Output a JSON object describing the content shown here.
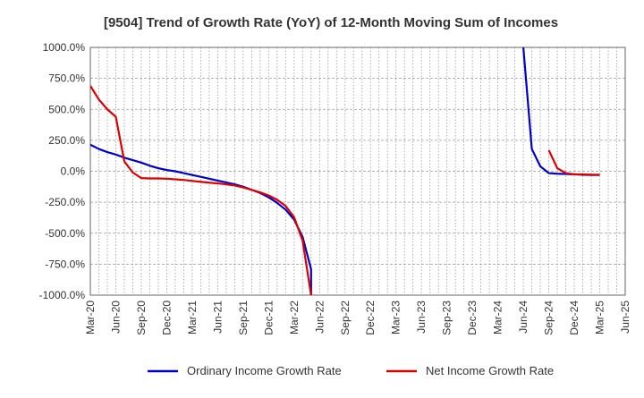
{
  "chart_data": {
    "type": "line",
    "title": "[9504]  Trend of Growth Rate (YoY) of 12-Month Moving Sum of Incomes",
    "xlabel": "",
    "ylabel": "",
    "ylim": [
      -1000,
      1000
    ],
    "y_ticks": [
      1000,
      750,
      500,
      250,
      0,
      -250,
      -500,
      -750,
      -1000
    ],
    "y_tick_labels": [
      "1000.0%",
      "750.0%",
      "500.0%",
      "250.0%",
      "0.0%",
      "-250.0%",
      "-500.0%",
      "-750.0%",
      "-1000.0%"
    ],
    "x_tick_labels": [
      "Mar-20",
      "Jun-20",
      "Sep-20",
      "Dec-20",
      "Mar-21",
      "Jun-21",
      "Sep-21",
      "Dec-21",
      "Mar-22",
      "Jun-22",
      "Sep-22",
      "Dec-22",
      "Mar-23",
      "Jun-23",
      "Sep-23",
      "Dec-23",
      "Mar-24",
      "Jun-24",
      "Sep-24",
      "Dec-24",
      "Mar-25",
      "Jun-25"
    ],
    "months": [
      "Mar-20",
      "Apr-20",
      "May-20",
      "Jun-20",
      "Jul-20",
      "Aug-20",
      "Sep-20",
      "Oct-20",
      "Nov-20",
      "Dec-20",
      "Jan-21",
      "Feb-21",
      "Mar-21",
      "Apr-21",
      "May-21",
      "Jun-21",
      "Jul-21",
      "Aug-21",
      "Sep-21",
      "Oct-21",
      "Nov-21",
      "Dec-21",
      "Jan-22",
      "Feb-22",
      "Mar-22",
      "Apr-22",
      "May-22",
      "Jun-22",
      "Jul-22",
      "Aug-22",
      "Sep-22",
      "Oct-22",
      "Nov-22",
      "Dec-22",
      "Jan-23",
      "Feb-23",
      "Mar-23",
      "Apr-23",
      "May-23",
      "Jun-23",
      "Jul-23",
      "Aug-23",
      "Sep-23",
      "Oct-23",
      "Nov-23",
      "Dec-23",
      "Jan-24",
      "Feb-24",
      "Mar-24",
      "Apr-24",
      "May-24",
      "Jun-24",
      "Jul-24",
      "Aug-24",
      "Sep-24",
      "Oct-24",
      "Nov-24",
      "Dec-24",
      "Jan-25",
      "Feb-25",
      "Mar-25",
      "Apr-25",
      "May-25",
      "Jun-25"
    ],
    "grid": true,
    "legend_position": "bottom",
    "series": [
      {
        "name": "Ordinary Income Growth Rate",
        "color": "#0000cc",
        "points": [
          [
            "Mar-20",
            215
          ],
          [
            "Apr-20",
            180
          ],
          [
            "May-20",
            155
          ],
          [
            "Jun-20",
            135
          ],
          [
            "Jul-20",
            110
          ],
          [
            "Aug-20",
            90
          ],
          [
            "Sep-20",
            70
          ],
          [
            "Oct-20",
            45
          ],
          [
            "Nov-20",
            25
          ],
          [
            "Dec-20",
            10
          ],
          [
            "Jan-21",
            0
          ],
          [
            "Feb-21",
            -15
          ],
          [
            "Mar-21",
            -30
          ],
          [
            "Apr-21",
            -45
          ],
          [
            "May-21",
            -60
          ],
          [
            "Jun-21",
            -75
          ],
          [
            "Jul-21",
            -90
          ],
          [
            "Aug-21",
            -105
          ],
          [
            "Sep-21",
            -125
          ],
          [
            "Oct-21",
            -150
          ],
          [
            "Nov-21",
            -175
          ],
          [
            "Dec-21",
            -210
          ],
          [
            "Jan-22",
            -255
          ],
          [
            "Feb-22",
            -310
          ],
          [
            "Mar-22",
            -390
          ],
          [
            "Apr-22",
            -530
          ],
          [
            "May-22",
            -790
          ],
          [
            "May-22",
            -1000
          ]
        ],
        "segments_after": [
          [
            "Jun-24",
            1000
          ],
          [
            "Jul-24",
            180
          ],
          [
            "Aug-24",
            40
          ],
          [
            "Sep-24",
            -15
          ],
          [
            "Oct-24",
            -20
          ],
          [
            "Nov-24",
            -22
          ],
          [
            "Dec-24",
            -25
          ],
          [
            "Jan-25",
            -28
          ],
          [
            "Feb-25",
            -30
          ],
          [
            "Mar-25",
            -30
          ]
        ]
      },
      {
        "name": "Net Income Growth Rate",
        "color": "#dd0000",
        "points": [
          [
            "Mar-20",
            690
          ],
          [
            "Apr-20",
            580
          ],
          [
            "May-20",
            500
          ],
          [
            "Jun-20",
            440
          ],
          [
            "Jul-20",
            80
          ],
          [
            "Aug-20",
            -10
          ],
          [
            "Sep-20",
            -55
          ],
          [
            "Oct-20",
            -58
          ],
          [
            "Nov-20",
            -58
          ],
          [
            "Dec-20",
            -60
          ],
          [
            "Jan-21",
            -65
          ],
          [
            "Feb-21",
            -70
          ],
          [
            "Mar-21",
            -78
          ],
          [
            "Apr-21",
            -85
          ],
          [
            "May-21",
            -92
          ],
          [
            "Jun-21",
            -98
          ],
          [
            "Jul-21",
            -105
          ],
          [
            "Aug-21",
            -115
          ],
          [
            "Sep-21",
            -130
          ],
          [
            "Oct-21",
            -150
          ],
          [
            "Nov-21",
            -170
          ],
          [
            "Dec-21",
            -195
          ],
          [
            "Jan-22",
            -230
          ],
          [
            "Feb-22",
            -280
          ],
          [
            "Mar-22",
            -370
          ],
          [
            "Apr-22",
            -560
          ],
          [
            "May-22",
            -1000
          ]
        ],
        "segments_after": [
          [
            "Sep-24",
            170
          ],
          [
            "Oct-24",
            25
          ],
          [
            "Nov-24",
            -15
          ],
          [
            "Dec-24",
            -25
          ],
          [
            "Jan-25",
            -25
          ],
          [
            "Feb-25",
            -28
          ],
          [
            "Mar-25",
            -28
          ]
        ]
      }
    ]
  }
}
